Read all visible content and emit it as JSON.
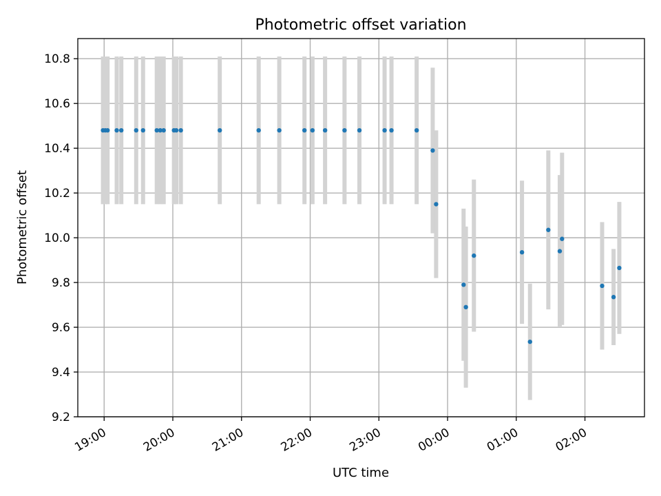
{
  "chart_data": {
    "type": "scatter",
    "title": "Photometric offset variation",
    "xlabel": "UTC time",
    "ylabel": "Photometric offset",
    "x_axis_type": "time",
    "xlim": [
      "18:37",
      "02:52"
    ],
    "ylim": [
      9.2,
      10.89
    ],
    "x_ticks": [
      "19:00",
      "20:00",
      "21:00",
      "22:00",
      "23:00",
      "00:00",
      "01:00",
      "02:00"
    ],
    "y_ticks": [
      "9.2",
      "9.4",
      "9.6",
      "9.8",
      "10.0",
      "10.2",
      "10.4",
      "10.6",
      "10.8"
    ],
    "grid": true,
    "error_bar_color": "#d3d3d3",
    "marker_color": "#1f77b4",
    "points": [
      {
        "x": "18:59",
        "y": 10.48,
        "yerr": 0.33
      },
      {
        "x": "19:01",
        "y": 10.48,
        "yerr": 0.33
      },
      {
        "x": "19:03",
        "y": 10.48,
        "yerr": 0.33
      },
      {
        "x": "19:11",
        "y": 10.48,
        "yerr": 0.33
      },
      {
        "x": "19:15",
        "y": 10.48,
        "yerr": 0.33
      },
      {
        "x": "19:28",
        "y": 10.48,
        "yerr": 0.33
      },
      {
        "x": "19:34",
        "y": 10.48,
        "yerr": 0.33
      },
      {
        "x": "19:46",
        "y": 10.48,
        "yerr": 0.33
      },
      {
        "x": "19:49",
        "y": 10.48,
        "yerr": 0.33
      },
      {
        "x": "19:52",
        "y": 10.48,
        "yerr": 0.33
      },
      {
        "x": "20:01",
        "y": 10.48,
        "yerr": 0.33
      },
      {
        "x": "20:03",
        "y": 10.48,
        "yerr": 0.33
      },
      {
        "x": "20:07",
        "y": 10.48,
        "yerr": 0.33
      },
      {
        "x": "20:41",
        "y": 10.48,
        "yerr": 0.33
      },
      {
        "x": "21:15",
        "y": 10.48,
        "yerr": 0.33
      },
      {
        "x": "21:33",
        "y": 10.48,
        "yerr": 0.33
      },
      {
        "x": "21:55",
        "y": 10.48,
        "yerr": 0.33
      },
      {
        "x": "22:02",
        "y": 10.48,
        "yerr": 0.33
      },
      {
        "x": "22:13",
        "y": 10.48,
        "yerr": 0.33
      },
      {
        "x": "22:30",
        "y": 10.48,
        "yerr": 0.33
      },
      {
        "x": "22:43",
        "y": 10.48,
        "yerr": 0.33
      },
      {
        "x": "23:05",
        "y": 10.48,
        "yerr": 0.33
      },
      {
        "x": "23:11",
        "y": 10.48,
        "yerr": 0.33
      },
      {
        "x": "23:33",
        "y": 10.48,
        "yerr": 0.33
      },
      {
        "x": "23:47",
        "y": 10.39,
        "yerr": 0.37
      },
      {
        "x": "23:50",
        "y": 10.15,
        "yerr": 0.33
      },
      {
        "x": "00:14",
        "y": 9.79,
        "yerr": 0.34
      },
      {
        "x": "00:16",
        "y": 9.69,
        "yerr": 0.36
      },
      {
        "x": "00:23",
        "y": 9.92,
        "yerr": 0.34
      },
      {
        "x": "01:05",
        "y": 9.935,
        "yerr": 0.32
      },
      {
        "x": "01:12",
        "y": 9.535,
        "yerr": 0.26
      },
      {
        "x": "01:28",
        "y": 10.035,
        "yerr": 0.355
      },
      {
        "x": "01:38",
        "y": 9.94,
        "yerr": 0.34
      },
      {
        "x": "01:40",
        "y": 9.995,
        "yerr": 0.385
      },
      {
        "x": "02:15",
        "y": 9.785,
        "yerr": 0.285
      },
      {
        "x": "02:25",
        "y": 9.735,
        "yerr": 0.215
      },
      {
        "x": "02:30",
        "y": 9.865,
        "yerr": 0.295
      }
    ]
  }
}
